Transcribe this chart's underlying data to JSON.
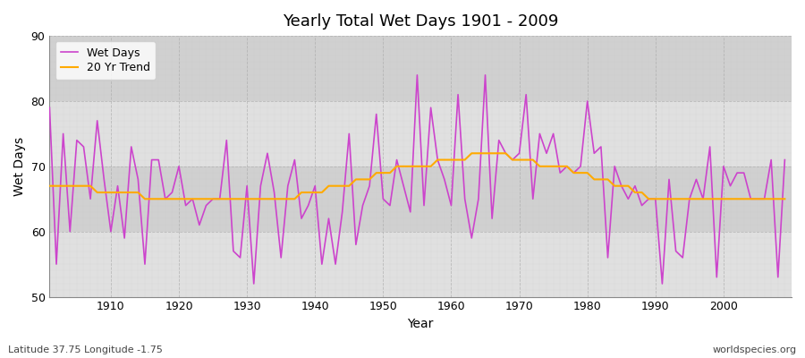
{
  "title": "Yearly Total Wet Days 1901 - 2009",
  "xlabel": "Year",
  "ylabel": "Wet Days",
  "ylim": [
    50,
    90
  ],
  "yticks": [
    50,
    60,
    70,
    80,
    90
  ],
  "xlim": [
    1901,
    2010
  ],
  "bg_color": "#dcdcdc",
  "fig_color": "#ffffff",
  "wet_days_color": "#cc44cc",
  "trend_color": "#ffaa00",
  "footnote_left": "Latitude 37.75 Longitude -1.75",
  "footnote_right": "worldspecies.org",
  "wet_days": [
    79,
    55,
    75,
    60,
    74,
    73,
    65,
    77,
    68,
    60,
    67,
    59,
    73,
    68,
    55,
    71,
    71,
    65,
    66,
    70,
    64,
    65,
    61,
    64,
    65,
    65,
    74,
    57,
    56,
    67,
    52,
    67,
    72,
    66,
    56,
    67,
    71,
    62,
    64,
    67,
    55,
    62,
    55,
    63,
    75,
    58,
    64,
    67,
    78,
    65,
    64,
    71,
    67,
    63,
    84,
    64,
    79,
    71,
    68,
    64,
    81,
    65,
    59,
    65,
    84,
    62,
    74,
    72,
    71,
    72,
    81,
    65,
    75,
    72,
    75,
    69,
    70,
    69,
    70,
    80,
    72,
    73,
    56,
    70,
    67,
    65,
    67,
    64,
    65,
    65,
    52,
    68,
    57,
    56,
    65,
    68,
    65,
    73,
    53,
    70,
    67,
    69,
    69,
    65,
    65,
    65,
    71,
    53,
    71
  ],
  "trend": [
    67,
    67,
    67,
    67,
    67,
    67,
    67,
    66,
    66,
    66,
    66,
    66,
    66,
    66,
    65,
    65,
    65,
    65,
    65,
    65,
    65,
    65,
    65,
    65,
    65,
    65,
    65,
    65,
    65,
    65,
    65,
    65,
    65,
    65,
    65,
    65,
    65,
    66,
    66,
    66,
    66,
    67,
    67,
    67,
    67,
    68,
    68,
    68,
    69,
    69,
    69,
    70,
    70,
    70,
    70,
    70,
    70,
    71,
    71,
    71,
    71,
    71,
    72,
    72,
    72,
    72,
    72,
    72,
    71,
    71,
    71,
    71,
    70,
    70,
    70,
    70,
    70,
    69,
    69,
    69,
    68,
    68,
    68,
    67,
    67,
    67,
    66,
    66,
    65,
    65,
    65,
    65,
    65,
    65,
    65,
    65,
    65,
    65,
    65,
    65,
    65,
    65,
    65,
    65,
    65,
    65,
    65,
    65,
    65
  ],
  "band_colors": [
    "#e0e0e0",
    "#d0d0d0"
  ],
  "xticks": [
    1910,
    1920,
    1930,
    1940,
    1950,
    1960,
    1970,
    1980,
    1990,
    2000
  ]
}
